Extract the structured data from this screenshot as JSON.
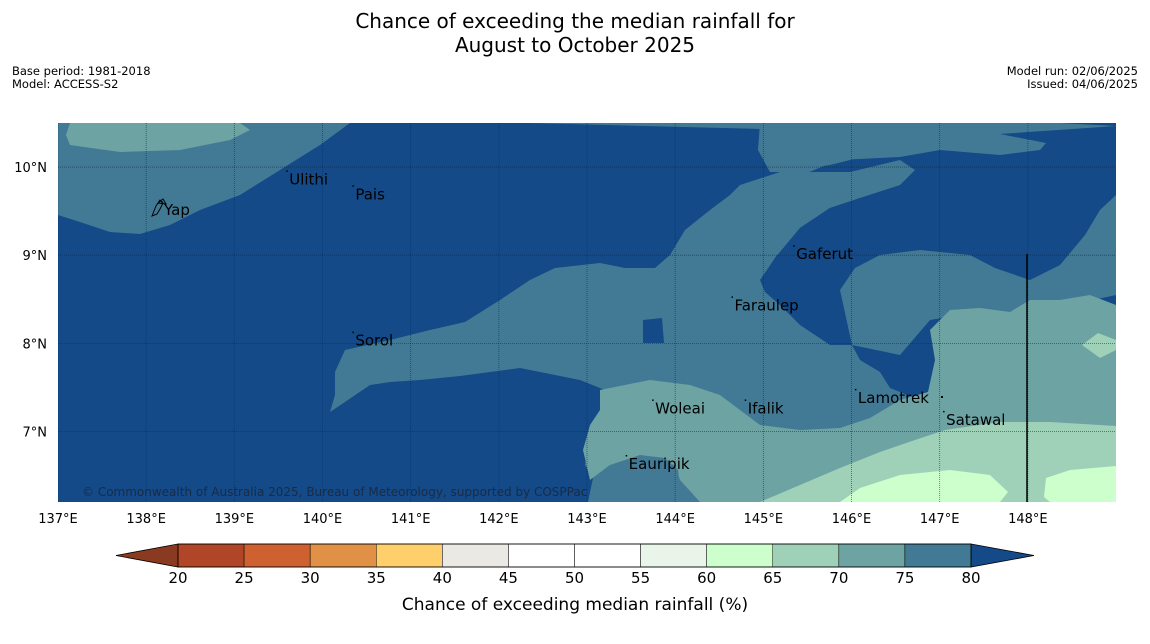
{
  "title_line1": "Chance of exceeding the median rainfall for",
  "title_line2": "August to October 2025",
  "meta_left": {
    "base_period": "Base period: 1981-2018",
    "model": "Model: ACCESS-S2"
  },
  "meta_right": {
    "model_run": "Model run: 02/06/2025",
    "issued": "Issued: 04/06/2025"
  },
  "copyright": "© Commonwealth of Australia 2025, Bureau of Meteorology, supported by COSPPac",
  "map": {
    "lon_range": [
      137,
      149
    ],
    "lat_range": [
      6.2,
      10.5
    ],
    "lon_ticks": [
      137,
      138,
      139,
      140,
      141,
      142,
      143,
      144,
      145,
      146,
      147,
      148
    ],
    "lon_labels": [
      "137°E",
      "138°E",
      "139°E",
      "140°E",
      "141°E",
      "142°E",
      "143°E",
      "144°E",
      "145°E",
      "146°E",
      "147°E",
      "148°E"
    ],
    "lat_ticks": [
      7,
      8,
      9,
      10
    ],
    "lat_labels": [
      "7°N",
      "8°N",
      "9°N",
      "10°N"
    ],
    "places": [
      {
        "name": "Yap",
        "lon": 138.18,
        "lat": 9.5
      },
      {
        "name": "Ulithi",
        "lon": 139.6,
        "lat": 9.85
      },
      {
        "name": "Pais",
        "lon": 140.35,
        "lat": 9.68
      },
      {
        "name": "Gaferut",
        "lon": 145.35,
        "lat": 9.0
      },
      {
        "name": "Faraulep",
        "lon": 144.65,
        "lat": 8.42
      },
      {
        "name": "Sorol",
        "lon": 140.35,
        "lat": 8.02
      },
      {
        "name": "Lamotrek",
        "lon": 146.05,
        "lat": 7.37
      },
      {
        "name": "Woleai",
        "lon": 143.75,
        "lat": 7.25
      },
      {
        "name": "Ifalik",
        "lon": 144.8,
        "lat": 7.25
      },
      {
        "name": "Satawal",
        "lon": 147.05,
        "lat": 7.12
      },
      {
        "name": "Eauripik",
        "lon": 143.45,
        "lat": 6.62
      }
    ]
  },
  "colorbar": {
    "label": "Chance of exceeding median rainfall (%)",
    "ticks": [
      "20",
      "25",
      "30",
      "35",
      "40",
      "45",
      "50",
      "55",
      "60",
      "65",
      "70",
      "75",
      "80"
    ],
    "colors": [
      "#b04527",
      "#cf6131",
      "#e19146",
      "#ffcf6b",
      "#ebe9e4",
      "#ffffff",
      "#ffffff",
      "#eaf5ea",
      "#ccffcc",
      "#9fd1b8",
      "#6ea3a3",
      "#427a96"
    ],
    "under_color": "#8b3a22",
    "over_color": "#134a87"
  },
  "palette": {
    "p80": "#134a87",
    "p75": "#427a96",
    "p70": "#6ea3a3",
    "p65": "#9fd1b8",
    "p60": "#ccffcc"
  }
}
